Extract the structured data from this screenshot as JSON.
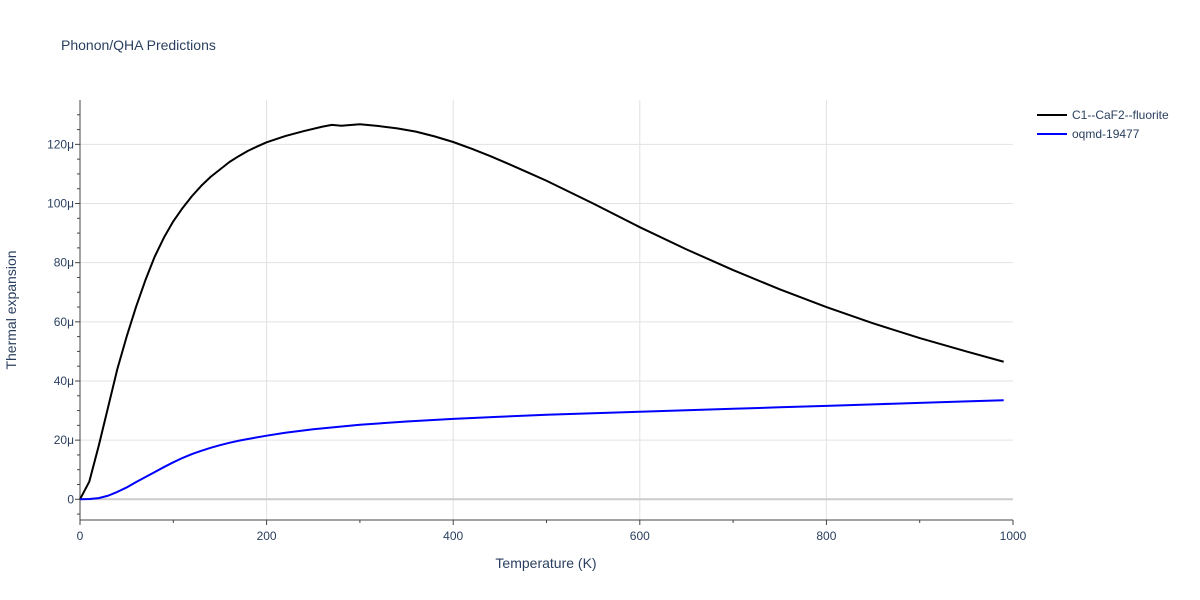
{
  "chart_data": {
    "type": "line",
    "title": "Phonon/QHA Predictions",
    "xlabel": "Temperature (K)",
    "ylabel": "Thermal expansion",
    "xlim": [
      0,
      1000
    ],
    "ylim": [
      -7,
      135
    ],
    "x_ticks": [
      {
        "value": 0,
        "label": "0"
      },
      {
        "value": 200,
        "label": "200"
      },
      {
        "value": 400,
        "label": "400"
      },
      {
        "value": 600,
        "label": "600"
      },
      {
        "value": 800,
        "label": "800"
      },
      {
        "value": 1000,
        "label": "1000"
      }
    ],
    "y_ticks": [
      {
        "value": 0,
        "label": "0"
      },
      {
        "value": 20,
        "label": "20μ"
      },
      {
        "value": 40,
        "label": "40μ"
      },
      {
        "value": 60,
        "label": "60μ"
      },
      {
        "value": 80,
        "label": "80μ"
      },
      {
        "value": 100,
        "label": "100μ"
      },
      {
        "value": 120,
        "label": "120μ"
      }
    ],
    "grid": true,
    "legend_position": "top-right",
    "series": [
      {
        "name": "C1--CaF2--fluorite",
        "color": "#000000",
        "points": [
          [
            0,
            0
          ],
          [
            10,
            6
          ],
          [
            20,
            18
          ],
          [
            30,
            31
          ],
          [
            40,
            44
          ],
          [
            50,
            55
          ],
          [
            60,
            65
          ],
          [
            70,
            74
          ],
          [
            80,
            82
          ],
          [
            90,
            88.5
          ],
          [
            100,
            94
          ],
          [
            110,
            98.5
          ],
          [
            120,
            102.5
          ],
          [
            130,
            106
          ],
          [
            140,
            109
          ],
          [
            150,
            111.5
          ],
          [
            160,
            114
          ],
          [
            170,
            116
          ],
          [
            180,
            117.8
          ],
          [
            190,
            119.3
          ],
          [
            200,
            120.7
          ],
          [
            220,
            122.8
          ],
          [
            240,
            124.5
          ],
          [
            260,
            126
          ],
          [
            270,
            126.6
          ],
          [
            280,
            126.3
          ],
          [
            300,
            126.8
          ],
          [
            320,
            126.2
          ],
          [
            340,
            125.4
          ],
          [
            360,
            124.3
          ],
          [
            380,
            122.7
          ],
          [
            400,
            120.8
          ],
          [
            420,
            118.5
          ],
          [
            440,
            116
          ],
          [
            460,
            113.3
          ],
          [
            480,
            110.5
          ],
          [
            500,
            107.7
          ],
          [
            550,
            100
          ],
          [
            600,
            92
          ],
          [
            650,
            84.5
          ],
          [
            700,
            77.5
          ],
          [
            750,
            71
          ],
          [
            800,
            65
          ],
          [
            850,
            59.5
          ],
          [
            900,
            54.5
          ],
          [
            950,
            50
          ],
          [
            990,
            46.5
          ]
        ]
      },
      {
        "name": "oqmd-19477",
        "color": "#0000ff",
        "points": [
          [
            0,
            0
          ],
          [
            10,
            0.1
          ],
          [
            20,
            0.4
          ],
          [
            30,
            1.2
          ],
          [
            40,
            2.5
          ],
          [
            50,
            4
          ],
          [
            60,
            5.8
          ],
          [
            70,
            7.5
          ],
          [
            80,
            9.2
          ],
          [
            90,
            10.9
          ],
          [
            100,
            12.5
          ],
          [
            110,
            14
          ],
          [
            120,
            15.3
          ],
          [
            130,
            16.4
          ],
          [
            140,
            17.4
          ],
          [
            150,
            18.3
          ],
          [
            160,
            19.1
          ],
          [
            170,
            19.8
          ],
          [
            180,
            20.4
          ],
          [
            200,
            21.5
          ],
          [
            220,
            22.5
          ],
          [
            250,
            23.7
          ],
          [
            300,
            25.2
          ],
          [
            350,
            26.3
          ],
          [
            400,
            27.2
          ],
          [
            450,
            27.9
          ],
          [
            500,
            28.6
          ],
          [
            550,
            29.1
          ],
          [
            600,
            29.6
          ],
          [
            650,
            30.1
          ],
          [
            700,
            30.6
          ],
          [
            750,
            31.1
          ],
          [
            800,
            31.6
          ],
          [
            850,
            32.1
          ],
          [
            900,
            32.6
          ],
          [
            950,
            33.1
          ],
          [
            990,
            33.5
          ]
        ]
      }
    ]
  }
}
